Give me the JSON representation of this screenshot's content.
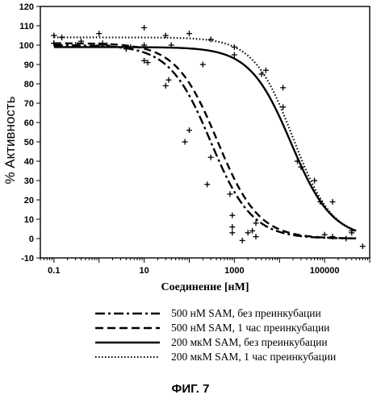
{
  "chart_data": {
    "type": "line",
    "title": "",
    "xlabel": "Соединение [нМ]",
    "ylabel": "% Активность",
    "xscale": "log",
    "xlim": [
      0.05,
      1000000
    ],
    "ylim": [
      -10,
      120
    ],
    "yticks": [
      -10,
      0,
      10,
      20,
      30,
      40,
      50,
      60,
      70,
      80,
      90,
      100,
      110,
      120
    ],
    "xticks": [
      {
        "value": 0.1,
        "label": "0.1"
      },
      {
        "value": 10,
        "label": "10"
      },
      {
        "value": 1000,
        "label": "1000"
      },
      {
        "value": 100000,
        "label": "100000"
      }
    ],
    "grid": false,
    "legend_position": "bottom",
    "series": [
      {
        "name": "500 нМ SAM, без преинкубации",
        "style": "dashdot",
        "fit": {
          "top": 100,
          "bottom": 0,
          "ic50": 300,
          "hill": 0.95
        },
        "points": [
          [
            0.1,
            101
          ],
          [
            0.3,
            100
          ],
          [
            1.2,
            101
          ],
          [
            4,
            98
          ],
          [
            10,
            92
          ],
          [
            30,
            79
          ],
          [
            80,
            50
          ],
          [
            250,
            28
          ],
          [
            900,
            12
          ],
          [
            2500,
            4
          ]
        ]
      },
      {
        "name": "500 нМ SAM, 1 час преинкубации",
        "style": "dashed",
        "fit": {
          "top": 101,
          "bottom": 0,
          "ic50": 420,
          "hill": 0.95
        },
        "points": [
          [
            0.15,
            104
          ],
          [
            0.4,
            102
          ],
          [
            1.5,
            100
          ],
          [
            5,
            99
          ],
          [
            12,
            91
          ],
          [
            35,
            82
          ],
          [
            100,
            56
          ],
          [
            300,
            42
          ],
          [
            800,
            23
          ],
          [
            3000,
            8
          ]
        ]
      },
      {
        "name": "200 мкМ SAM, без преинкубации",
        "style": "solid",
        "fit": {
          "top": 99,
          "bottom": 0,
          "ic50": 18000,
          "hill": 0.95
        },
        "points": [
          [
            0.1,
            101
          ],
          [
            1,
            100
          ],
          [
            10,
            100
          ],
          [
            40,
            100
          ],
          [
            200,
            90
          ],
          [
            1000,
            95
          ],
          [
            4000,
            85
          ],
          [
            12000,
            68
          ],
          [
            25000,
            40
          ],
          [
            60000,
            30
          ],
          [
            150000,
            19
          ],
          [
            400000,
            3
          ]
        ]
      },
      {
        "name": "200 мкМ SAM, 1 час преинкубации",
        "style": "dotted",
        "fit": {
          "top": 104,
          "bottom": 0,
          "ic50": 20000,
          "hill": 1.0
        },
        "points": [
          [
            0.1,
            105
          ],
          [
            1,
            106
          ],
          [
            10,
            109
          ],
          [
            30,
            105
          ],
          [
            100,
            106
          ],
          [
            300,
            103
          ],
          [
            1000,
            99
          ],
          [
            5000,
            87
          ],
          [
            12000,
            78
          ],
          [
            30000,
            37
          ],
          [
            80000,
            19
          ],
          [
            100000,
            2
          ],
          [
            150000,
            1
          ],
          [
            300000,
            0
          ]
        ]
      }
    ],
    "scatter_extra": [
      [
        900,
        3
      ],
      [
        900,
        6
      ],
      [
        2000,
        3
      ],
      [
        3000,
        1
      ],
      [
        1500,
        -1
      ],
      [
        400000,
        4
      ],
      [
        700000,
        -4
      ]
    ]
  },
  "caption": "ФИГ. 7"
}
